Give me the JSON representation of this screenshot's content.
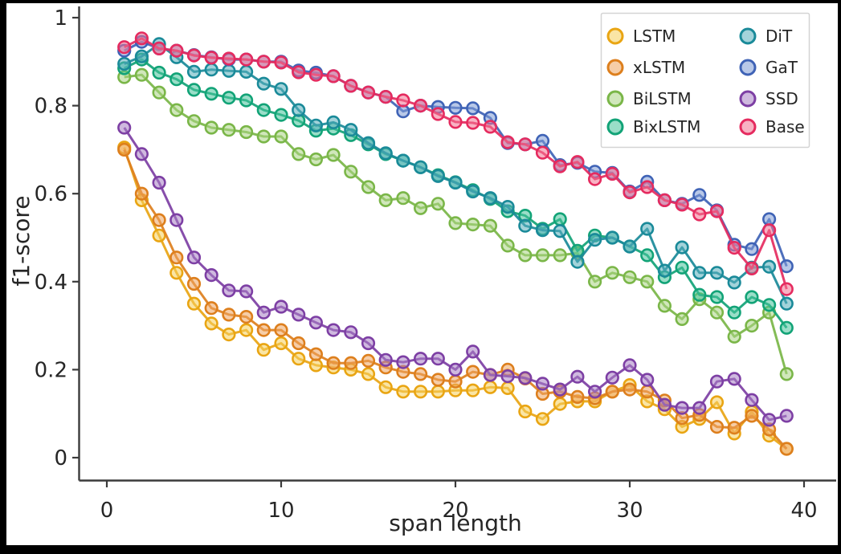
{
  "chart_data": {
    "type": "line",
    "title": "",
    "xlabel": "span length",
    "ylabel": "f1-score",
    "xlim": [
      0,
      40
    ],
    "ylim": [
      0,
      1
    ],
    "grid": false,
    "x_tick_labels": [
      "0",
      "10",
      "20",
      "30",
      "40"
    ],
    "x_tick_values": [
      0,
      10,
      20,
      30,
      40
    ],
    "y_tick_labels": [
      "0",
      "0.2",
      "0.4",
      "0.6",
      "0.8",
      "1"
    ],
    "y_tick_values": [
      0,
      0.2,
      0.4,
      0.6,
      0.8,
      1
    ],
    "legend": {
      "position": "upper right",
      "columns": 2,
      "column1": [
        "LSTM",
        "xLSTM",
        "BiLSTM",
        "BixLSTM"
      ],
      "column2": [
        "DiT",
        "GaT",
        "SSD",
        "Base"
      ]
    },
    "x": [
      1,
      2,
      3,
      4,
      5,
      6,
      7,
      8,
      9,
      10,
      11,
      12,
      13,
      14,
      15,
      16,
      17,
      18,
      19,
      20,
      21,
      22,
      23,
      24,
      25,
      26,
      27,
      28,
      29,
      30,
      31,
      32,
      33,
      34,
      35,
      36,
      37,
      38,
      39
    ],
    "series": [
      {
        "name": "LSTM",
        "edge_color": "#e9a513",
        "fill_color": "#f5d05b",
        "values": [
          0.705,
          0.585,
          0.505,
          0.42,
          0.35,
          0.305,
          0.28,
          0.29,
          0.245,
          0.26,
          0.225,
          0.21,
          0.205,
          0.2,
          0.19,
          0.16,
          0.15,
          0.15,
          0.15,
          0.153,
          0.153,
          0.16,
          0.158,
          0.105,
          0.088,
          0.122,
          0.128,
          0.128,
          0.15,
          0.165,
          0.128,
          0.11,
          0.07,
          0.088,
          0.126,
          0.055,
          0.104,
          0.05,
          0.02
        ]
      },
      {
        "name": "xLSTM",
        "edge_color": "#dd7f1d",
        "fill_color": "#efa45f",
        "values": [
          0.7,
          0.6,
          0.54,
          0.455,
          0.395,
          0.34,
          0.325,
          0.32,
          0.29,
          0.29,
          0.26,
          0.235,
          0.215,
          0.215,
          0.22,
          0.205,
          0.195,
          0.19,
          0.177,
          0.173,
          0.195,
          0.188,
          0.2,
          0.18,
          0.145,
          0.15,
          0.138,
          0.135,
          0.15,
          0.155,
          0.15,
          0.13,
          0.09,
          0.097,
          0.07,
          0.068,
          0.095,
          0.064,
          0.02
        ]
      },
      {
        "name": "BiLSTM",
        "edge_color": "#7ab648",
        "fill_color": "#a9d484",
        "values": [
          0.865,
          0.87,
          0.83,
          0.79,
          0.765,
          0.75,
          0.745,
          0.74,
          0.73,
          0.73,
          0.69,
          0.678,
          0.688,
          0.65,
          0.615,
          0.585,
          0.59,
          0.567,
          0.577,
          0.533,
          0.53,
          0.527,
          0.482,
          0.46,
          0.46,
          0.46,
          0.465,
          0.4,
          0.42,
          0.41,
          0.4,
          0.345,
          0.315,
          0.36,
          0.33,
          0.275,
          0.3,
          0.33,
          0.19
        ]
      },
      {
        "name": "BixLSTM",
        "edge_color": "#12a377",
        "fill_color": "#47c39a",
        "values": [
          0.885,
          0.905,
          0.875,
          0.86,
          0.836,
          0.827,
          0.818,
          0.812,
          0.79,
          0.779,
          0.766,
          0.743,
          0.748,
          0.733,
          0.712,
          0.69,
          0.675,
          0.66,
          0.642,
          0.626,
          0.608,
          0.588,
          0.56,
          0.55,
          0.52,
          0.542,
          0.47,
          0.505,
          0.5,
          0.48,
          0.46,
          0.41,
          0.432,
          0.37,
          0.365,
          0.33,
          0.365,
          0.347,
          0.295
        ]
      },
      {
        "name": "DiT",
        "edge_color": "#1a8a99",
        "fill_color": "#57aebb",
        "values": [
          0.895,
          0.912,
          0.94,
          0.91,
          0.877,
          0.882,
          0.879,
          0.877,
          0.85,
          0.838,
          0.79,
          0.755,
          0.762,
          0.745,
          0.715,
          0.692,
          0.675,
          0.66,
          0.64,
          0.625,
          0.605,
          0.59,
          0.57,
          0.527,
          0.517,
          0.515,
          0.445,
          0.495,
          0.5,
          0.48,
          0.52,
          0.425,
          0.478,
          0.42,
          0.42,
          0.398,
          0.432,
          0.434,
          0.35
        ]
      },
      {
        "name": "GaT",
        "edge_color": "#3f63b6",
        "fill_color": "#7e9ad6",
        "values": [
          0.925,
          0.945,
          0.93,
          0.925,
          0.915,
          0.91,
          0.905,
          0.905,
          0.9,
          0.9,
          0.88,
          0.875,
          0.867,
          0.845,
          0.83,
          0.82,
          0.787,
          0.8,
          0.797,
          0.795,
          0.794,
          0.772,
          0.715,
          0.712,
          0.72,
          0.665,
          0.67,
          0.65,
          0.647,
          0.605,
          0.627,
          0.585,
          0.577,
          0.597,
          0.562,
          0.484,
          0.474,
          0.542,
          0.435
        ]
      },
      {
        "name": "SSD",
        "edge_color": "#7d3fa4",
        "fill_color": "#a87fc4",
        "values": [
          0.75,
          0.69,
          0.625,
          0.54,
          0.455,
          0.415,
          0.38,
          0.378,
          0.33,
          0.343,
          0.325,
          0.307,
          0.29,
          0.285,
          0.26,
          0.222,
          0.217,
          0.225,
          0.225,
          0.2,
          0.241,
          0.188,
          0.185,
          0.181,
          0.168,
          0.155,
          0.184,
          0.15,
          0.182,
          0.21,
          0.177,
          0.12,
          0.113,
          0.113,
          0.173,
          0.179,
          0.131,
          0.086,
          0.095
        ]
      },
      {
        "name": "Base",
        "edge_color": "#e52b5f",
        "fill_color": "#f27292",
        "values": [
          0.933,
          0.953,
          0.93,
          0.925,
          0.914,
          0.909,
          0.907,
          0.905,
          0.9,
          0.898,
          0.876,
          0.87,
          0.867,
          0.845,
          0.83,
          0.82,
          0.812,
          0.8,
          0.781,
          0.763,
          0.761,
          0.752,
          0.717,
          0.712,
          0.693,
          0.662,
          0.672,
          0.633,
          0.645,
          0.603,
          0.615,
          0.585,
          0.575,
          0.553,
          0.56,
          0.477,
          0.43,
          0.517,
          0.383
        ]
      }
    ]
  }
}
